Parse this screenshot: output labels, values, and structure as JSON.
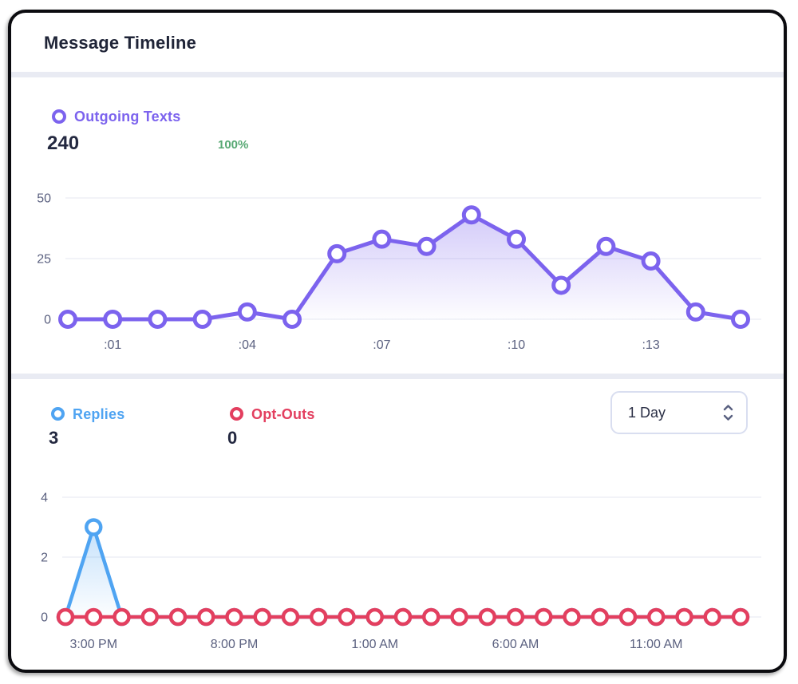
{
  "card": {
    "title": "Message Timeline"
  },
  "outgoing": {
    "label": "Outgoing Texts",
    "total": "240",
    "percent": "100%",
    "color": "#7c63ee",
    "percent_color": "#57a873"
  },
  "replies": {
    "label": "Replies",
    "total": "3",
    "color": "#4fa4f2"
  },
  "optouts": {
    "label": "Opt-Outs",
    "total": "0",
    "color": "#e33f5f"
  },
  "range_select": {
    "value": "1 Day"
  },
  "chart_data": [
    {
      "type": "line",
      "title": "Outgoing Texts",
      "categories": [
        ":00",
        ":01",
        ":02",
        ":03",
        ":04",
        ":05",
        ":06",
        ":07",
        ":08",
        ":09",
        ":10",
        ":11",
        ":12",
        ":13",
        ":14",
        ":15"
      ],
      "series": [
        {
          "name": "Outgoing Texts",
          "color": "#7c63ee",
          "fill": true,
          "values": [
            0,
            0,
            0,
            0,
            3,
            0,
            27,
            33,
            30,
            43,
            33,
            14,
            30,
            24,
            3,
            0
          ]
        }
      ],
      "tick_indices": [
        1,
        4,
        7,
        10,
        13
      ],
      "yticks": [
        0,
        25,
        50
      ],
      "ymax": 50,
      "grid": true,
      "legend_position": "top-left",
      "total_shown": 240
    },
    {
      "type": "line",
      "title": "Replies and Opt-Outs",
      "categories": [
        "2:00 PM",
        "3:00 PM",
        "4:00 PM",
        "5:00 PM",
        "6:00 PM",
        "7:00 PM",
        "8:00 PM",
        "9:00 PM",
        "10:00 PM",
        "11:00 PM",
        "12:00 AM",
        "1:00 AM",
        "2:00 AM",
        "3:00 AM",
        "4:00 AM",
        "5:00 AM",
        "6:00 AM",
        "7:00 AM",
        "8:00 AM",
        "9:00 AM",
        "10:00 AM",
        "11:00 AM",
        "12:00 PM",
        "1:00 PM",
        "2:00 PM"
      ],
      "series": [
        {
          "name": "Replies",
          "color": "#4fa4f2",
          "fill": true,
          "values": [
            0,
            3,
            0,
            0,
            0,
            0,
            0,
            0,
            0,
            0,
            0,
            0,
            0,
            0,
            0,
            0,
            0,
            0,
            0,
            0,
            0,
            0,
            0,
            0,
            0
          ]
        },
        {
          "name": "Opt-Outs",
          "color": "#e33f5f",
          "fill": false,
          "values": [
            0,
            0,
            0,
            0,
            0,
            0,
            0,
            0,
            0,
            0,
            0,
            0,
            0,
            0,
            0,
            0,
            0,
            0,
            0,
            0,
            0,
            0,
            0,
            0,
            0
          ]
        }
      ],
      "tick_indices": [
        1,
        6,
        11,
        16,
        21
      ],
      "yticks": [
        0,
        2,
        4
      ],
      "ymax": 4,
      "grid": true,
      "legend_position": "top-left",
      "range_selector": "1 Day"
    }
  ]
}
